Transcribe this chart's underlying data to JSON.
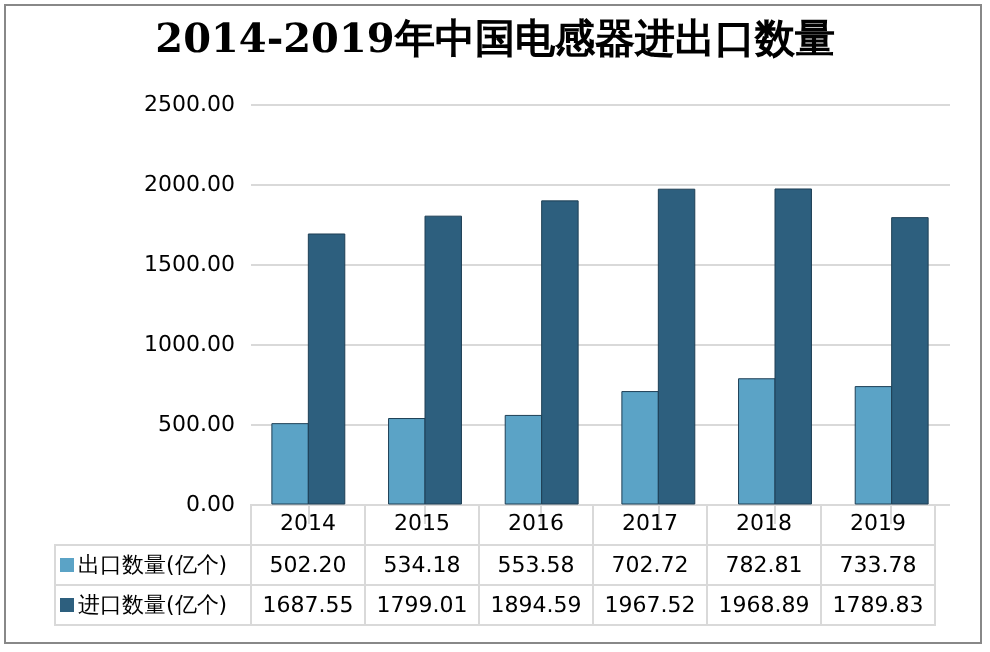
{
  "chart_data": {
    "type": "bar",
    "title": "2014-2019年中国电感器进出口数量",
    "categories": [
      "2014",
      "2015",
      "2016",
      "2017",
      "2018",
      "2019"
    ],
    "series": [
      {
        "name": "出口数量(亿个)",
        "color": "#5ba3c6",
        "values": [
          502.2,
          534.18,
          553.58,
          702.72,
          782.81,
          733.78
        ],
        "value_labels": [
          "502.20",
          "534.18",
          "553.58",
          "702.72",
          "782.81",
          "733.78"
        ]
      },
      {
        "name": "进口数量(亿个)",
        "color": "#2d5f7e",
        "values": [
          1687.55,
          1799.01,
          1894.59,
          1967.52,
          1968.89,
          1789.83
        ],
        "value_labels": [
          "1687.55",
          "1799.01",
          "1894.59",
          "1967.52",
          "1968.89",
          "1789.83"
        ]
      }
    ],
    "ylim": [
      0,
      2500
    ],
    "yticks": [
      {
        "value": 0,
        "label": "0.00"
      },
      {
        "value": 500,
        "label": "500.00"
      },
      {
        "value": 1000,
        "label": "1000.00"
      },
      {
        "value": 1500,
        "label": "1500.00"
      },
      {
        "value": 2000,
        "label": "2000.00"
      },
      {
        "value": 2500,
        "label": "2500.00"
      }
    ],
    "grid": "y",
    "legend": "bottom"
  }
}
